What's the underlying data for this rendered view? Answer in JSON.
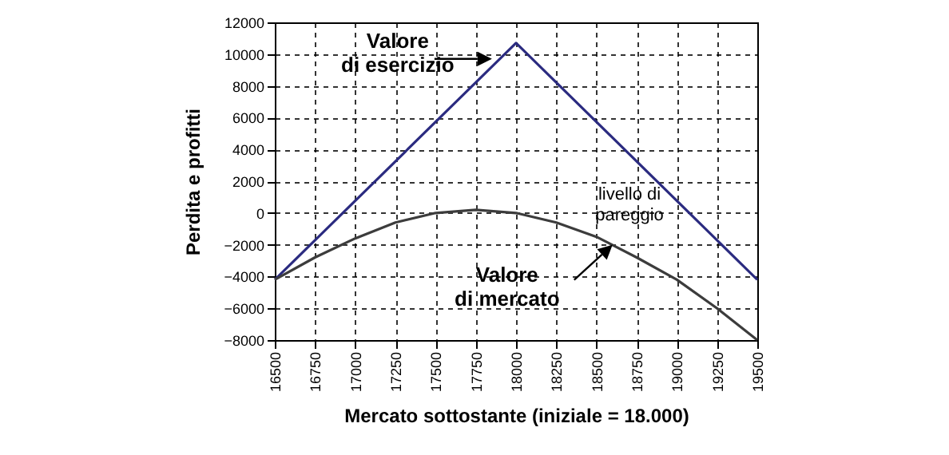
{
  "chart_data": {
    "type": "line",
    "xlabel": "Mercato sottostante (iniziale = 18.000)",
    "ylabel": "Perdita e profitti",
    "xlim": [
      16500,
      19500
    ],
    "xticks": [
      16500,
      16750,
      17000,
      17250,
      17500,
      17750,
      18000,
      18250,
      18500,
      18750,
      19000,
      19250,
      19500
    ],
    "ylim": [
      -8000,
      12000
    ],
    "yticks": [
      -8000,
      -6000,
      -4000,
      -2000,
      0,
      2000,
      4000,
      6000,
      8000,
      10000,
      12000
    ],
    "grid": true,
    "series": [
      {
        "color": "#2b2b80",
        "x": [
          16500,
          18000,
          19500
        ],
        "values": [
          -4200,
          10700,
          -4200
        ]
      },
      {
        "color": "#3c3c3c",
        "x": [
          16500,
          16750,
          17000,
          17250,
          17500,
          17750,
          18000,
          18250,
          18500,
          18750,
          19000,
          19250,
          19500
        ],
        "values": [
          -4200,
          -2800,
          -1600,
          -600,
          0,
          200,
          0,
          -600,
          -1500,
          -2800,
          -4200,
          -6000,
          -8000
        ]
      }
    ],
    "annotations": [
      {
        "text": "Valore\ndi esercizio",
        "x": 17880,
        "y": 9700
      },
      {
        "text": "Valore\ndi mercato",
        "x": 18600,
        "y": -2000
      },
      "livello di\npareggio"
    ]
  }
}
